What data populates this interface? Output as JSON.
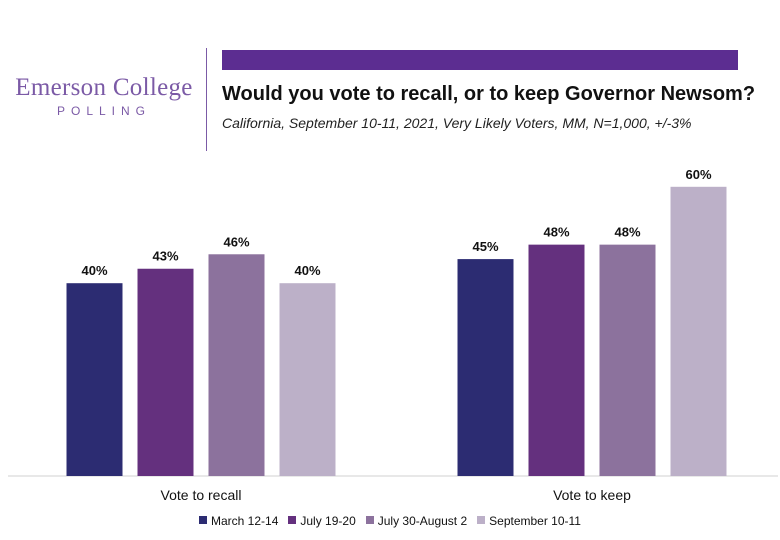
{
  "logo": {
    "name": "Emerson College",
    "sub": "POLLING"
  },
  "colors": {
    "brand": "#7b5aa6",
    "bar": "#5c2d91"
  },
  "title": "Would you vote to recall, or to keep Governor Newsom?",
  "subtitle": "California, September 10-11, 2021, Very Likely Voters, MM, N=1,000, +/-3%",
  "chart_data": {
    "type": "bar",
    "title": "Would you vote to recall, or to keep Governor Newsom?",
    "subtitle": "California, September 10-11, 2021, Very Likely Voters, MM, N=1,000, +/-3%",
    "categories": [
      "Vote to recall",
      "Vote to keep"
    ],
    "series": [
      {
        "name": "March 12-14",
        "color": "#2c2c72",
        "values": [
          40,
          45
        ]
      },
      {
        "name": "July 19-20",
        "color": "#64307e",
        "values": [
          43,
          48
        ]
      },
      {
        "name": "July 30-August 2",
        "color": "#8c729d",
        "values": [
          46,
          48
        ]
      },
      {
        "name": "September 10-11",
        "color": "#bcb0c8",
        "values": [
          40,
          60
        ]
      }
    ],
    "value_suffix": "%",
    "ylim": [
      0,
      60
    ],
    "grid": false,
    "legend": "bottom",
    "xlabel": "",
    "ylabel": ""
  }
}
